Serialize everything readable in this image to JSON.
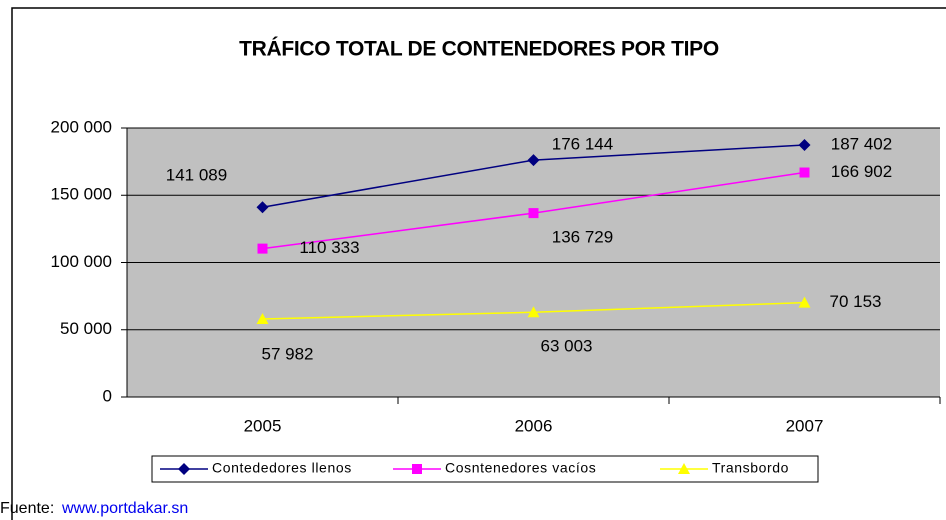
{
  "chart_data": {
    "type": "line",
    "title": "TRÁFICO TOTAL DE CONTENEDORES POR TIPO",
    "categories": [
      "2005",
      "2006",
      "2007"
    ],
    "series": [
      {
        "name": "Contededores llenos",
        "color": "#000080",
        "marker": "diamond",
        "values": [
          141089,
          176144,
          187402
        ],
        "value_labels": [
          "141 089",
          "176 144",
          "187 402"
        ]
      },
      {
        "name": "Cosntenedores vacíos",
        "color": "#ff00ff",
        "marker": "square",
        "values": [
          110333,
          136729,
          166902
        ],
        "value_labels": [
          "110 333",
          "136 729",
          "166 902"
        ]
      },
      {
        "name": "Transbordo",
        "color": "#ffff00",
        "marker": "triangle",
        "values": [
          57982,
          63003,
          70153
        ],
        "value_labels": [
          "57 982",
          "63 003",
          "70 153"
        ]
      }
    ],
    "ylim": [
      0,
      200000
    ],
    "yticks": [
      0,
      {
        "value": 50000,
        "label": "50 000"
      },
      {
        "value": 100000,
        "label": "100 000"
      },
      {
        "value": 150000,
        "label": "150 000"
      },
      {
        "value": 200000,
        "label": "200 000"
      }
    ],
    "grid": true,
    "legend": "bottom"
  },
  "footer": {
    "label": "Fuente:",
    "link": "www.portdakar.sn"
  }
}
